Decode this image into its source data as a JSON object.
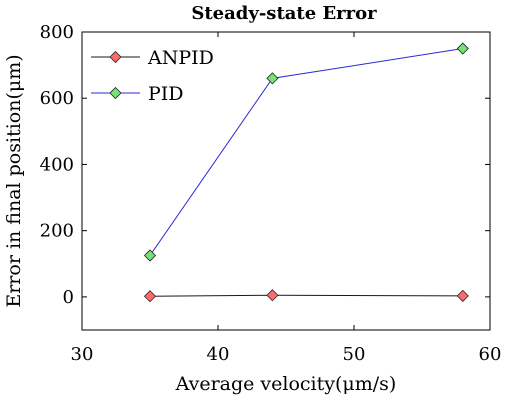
{
  "chart_data": {
    "type": "line",
    "title": "Steady-state Error",
    "xlabel": "Average velocity(μm/s)",
    "ylabel": "Error in final position(μm)",
    "xlim": [
      30,
      60
    ],
    "ylim": [
      -100,
      800
    ],
    "xticks": [
      30,
      40,
      50,
      60
    ],
    "yticks": [
      0,
      200,
      400,
      600,
      800
    ],
    "grid": false,
    "legend_position": "top-left",
    "series": [
      {
        "name": "ANPID",
        "x": [
          35,
          44,
          58
        ],
        "y": [
          2,
          5,
          3
        ],
        "line_color": "#1a1a1a",
        "marker_color": "#ff6b6b",
        "marker": "diamond"
      },
      {
        "name": "PID",
        "x": [
          35,
          44,
          58
        ],
        "y": [
          125,
          660,
          750
        ],
        "line_color": "#2a2ad6",
        "marker_color": "#77e077",
        "marker": "diamond"
      }
    ]
  }
}
